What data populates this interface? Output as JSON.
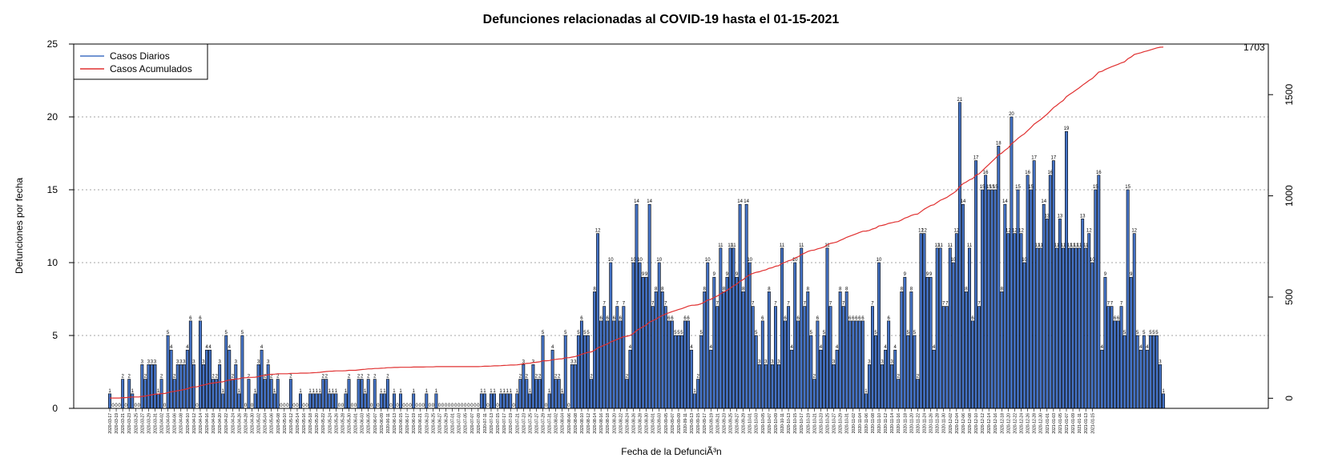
{
  "chart_data": {
    "type": "bar",
    "title": "Defunciones relacionadas al COVID-19 hasta el 01-15-2021",
    "xlabel": "Fecha de la DefunciÃ³n",
    "ylabel": "Defunciones por fecha",
    "ylim": [
      0,
      25
    ],
    "y_ticks": [
      0,
      5,
      10,
      15,
      20,
      25
    ],
    "y2lim": [
      -50,
      1750
    ],
    "y2_ticks": [
      0,
      500,
      1000,
      1500
    ],
    "grid": "horizontal dotted",
    "legend_position": "top-left",
    "legend": [
      "Casos Diarios",
      "Casos Acumulados"
    ],
    "final_cumulative_label": "1703",
    "x_tick_labels": [
      "2020-03-17",
      "2020-03-19",
      "2020-03-21",
      "2020-03-23",
      "2020-03-25",
      "2020-03-27",
      "2020-03-29",
      "2020-03-31",
      "2020-04-02",
      "2020-04-04",
      "2020-04-06",
      "2020-04-08",
      "2020-04-10",
      "2020-04-12",
      "2020-04-14",
      "2020-04-16",
      "2020-04-18",
      "2020-04-20",
      "2020-04-22",
      "2020-04-24",
      "2020-04-26",
      "2020-04-28",
      "2020-04-30",
      "2020-05-02",
      "2020-05-04",
      "2020-05-06",
      "2020-05-08",
      "2020-05-10",
      "2020-05-12",
      "2020-05-14",
      "2020-05-16",
      "2020-05-18",
      "2020-05-20",
      "2020-05-22",
      "2020-05-24",
      "2020-05-26",
      "2020-05-28",
      "2020-05-30",
      "2020-06-01",
      "2020-06-03",
      "2020-06-05",
      "2020-06-07",
      "2020-06-09",
      "2020-06-11",
      "2020-06-13",
      "2020-06-15",
      "2020-06-17",
      "2020-06-19",
      "2020-06-21",
      "2020-06-23",
      "2020-06-25",
      "2020-06-27",
      "2020-06-29",
      "2020-07-01",
      "2020-07-03",
      "2020-07-05",
      "2020-07-07",
      "2020-07-09",
      "2020-07-11",
      "2020-07-13",
      "2020-07-15",
      "2020-07-17",
      "2020-07-19",
      "2020-07-21",
      "2020-07-23",
      "2020-07-25",
      "2020-07-27",
      "2020-07-29",
      "2020-07-31",
      "2020-08-02",
      "2020-08-04",
      "2020-08-06",
      "2020-08-08",
      "2020-08-10",
      "2020-08-12",
      "2020-08-14",
      "2020-08-16",
      "2020-08-18",
      "2020-08-20",
      "2020-08-22",
      "2020-08-24",
      "2020-08-26",
      "2020-08-28",
      "2020-08-30",
      "2020-09-01",
      "2020-09-03",
      "2020-09-05",
      "2020-09-07",
      "2020-09-09",
      "2020-09-11",
      "2020-09-13",
      "2020-09-15",
      "2020-09-17",
      "2020-09-19",
      "2020-09-21",
      "2020-09-23",
      "2020-09-25",
      "2020-09-27",
      "2020-09-29",
      "2020-10-01",
      "2020-10-03",
      "2020-10-05",
      "2020-10-07",
      "2020-10-09",
      "2020-10-11",
      "2020-10-13",
      "2020-10-15",
      "2020-10-17",
      "2020-10-19",
      "2020-10-21",
      "2020-10-23",
      "2020-10-25",
      "2020-10-27",
      "2020-10-29",
      "2020-10-31",
      "2020-11-02",
      "2020-11-04",
      "2020-11-06",
      "2020-11-08",
      "2020-11-10",
      "2020-11-12",
      "2020-11-14",
      "2020-11-16",
      "2020-11-18",
      "2020-11-20",
      "2020-11-22",
      "2020-11-24",
      "2020-11-26",
      "2020-11-28",
      "2020-11-30",
      "2020-12-02",
      "2020-12-04",
      "2020-12-06",
      "2020-12-08",
      "2020-12-10",
      "2020-12-12",
      "2020-12-14",
      "2020-12-16",
      "2020-12-18",
      "2020-12-20",
      "2020-12-22",
      "2020-12-24",
      "2020-12-26",
      "2020-12-28",
      "2020-12-30",
      "2021-01-01",
      "2021-01-03",
      "2021-01-05",
      "2021-01-07",
      "2021-01-09",
      "2021-01-11",
      "2021-01-13",
      "2021-01-15"
    ],
    "series": [
      {
        "name": "Casos Diarios",
        "color": "#4472C4",
        "values": [
          1,
          0,
          0,
          0,
          2,
          0,
          2,
          1,
          0,
          0,
          3,
          2,
          3,
          3,
          3,
          1,
          2,
          0,
          5,
          4,
          2,
          3,
          3,
          3,
          4,
          6,
          3,
          0,
          6,
          3,
          4,
          4,
          2,
          2,
          3,
          1,
          5,
          4,
          2,
          3,
          1,
          5,
          0,
          2,
          0,
          1,
          3,
          4,
          2,
          3,
          2,
          1,
          2,
          0,
          0,
          0,
          2,
          0,
          0,
          1,
          0,
          0,
          1,
          1,
          1,
          1,
          2,
          2,
          1,
          1,
          1,
          0,
          0,
          1,
          2,
          0,
          0,
          2,
          2,
          1,
          2,
          0,
          2,
          0,
          1,
          1,
          2,
          0,
          1,
          0,
          1,
          0,
          0,
          0,
          1,
          0,
          0,
          0,
          1,
          0,
          0,
          1,
          0,
          0,
          0,
          0,
          0,
          0,
          0,
          0,
          0,
          0,
          0,
          0,
          0,
          1,
          1,
          0,
          1,
          1,
          0,
          1,
          1,
          1,
          1,
          0,
          1,
          2,
          3,
          2,
          1,
          3,
          2,
          2,
          5,
          0,
          1,
          4,
          2,
          2,
          1,
          5,
          0,
          3,
          3,
          5,
          6,
          5,
          5,
          2,
          8,
          12,
          6,
          7,
          6,
          10,
          6,
          7,
          6,
          7,
          2,
          4,
          10,
          14,
          10,
          9,
          9,
          14,
          7,
          8,
          10,
          8,
          7,
          6,
          6,
          5,
          5,
          5,
          6,
          6,
          4,
          1,
          2,
          5,
          8,
          10,
          4,
          9,
          7,
          11,
          8,
          9,
          11,
          11,
          9,
          14,
          8,
          14,
          10,
          7,
          5,
          3,
          6,
          3,
          8,
          3,
          7,
          3,
          11,
          6,
          7,
          4,
          10,
          6,
          11,
          7,
          8,
          5,
          2,
          6,
          4,
          5,
          11,
          7,
          3,
          4,
          8,
          7,
          8,
          6,
          6,
          6,
          6,
          6,
          1,
          3,
          7,
          5,
          10,
          3,
          4,
          6,
          3,
          4,
          2,
          8,
          9,
          5,
          8,
          5,
          2,
          12,
          12,
          9,
          9,
          4,
          11,
          11,
          7,
          7,
          11,
          10,
          12,
          21,
          14,
          8,
          11,
          6,
          17,
          7,
          15,
          16,
          15,
          15,
          15,
          18,
          8,
          14,
          12,
          20,
          12,
          15,
          12,
          10,
          16,
          15,
          17,
          11,
          11,
          14,
          13,
          16,
          17,
          11,
          13,
          11,
          19,
          11,
          11,
          11,
          11,
          13,
          11,
          12,
          10,
          15,
          16,
          4,
          9,
          7,
          7,
          6,
          6,
          7,
          5,
          15,
          9,
          12,
          5,
          4,
          5,
          4,
          5,
          5,
          5,
          3,
          1
        ]
      },
      {
        "name": "Casos Acumulados",
        "color": "#E03030"
      }
    ],
    "value_labels": {
      "show": true,
      "color": "#000000"
    }
  }
}
